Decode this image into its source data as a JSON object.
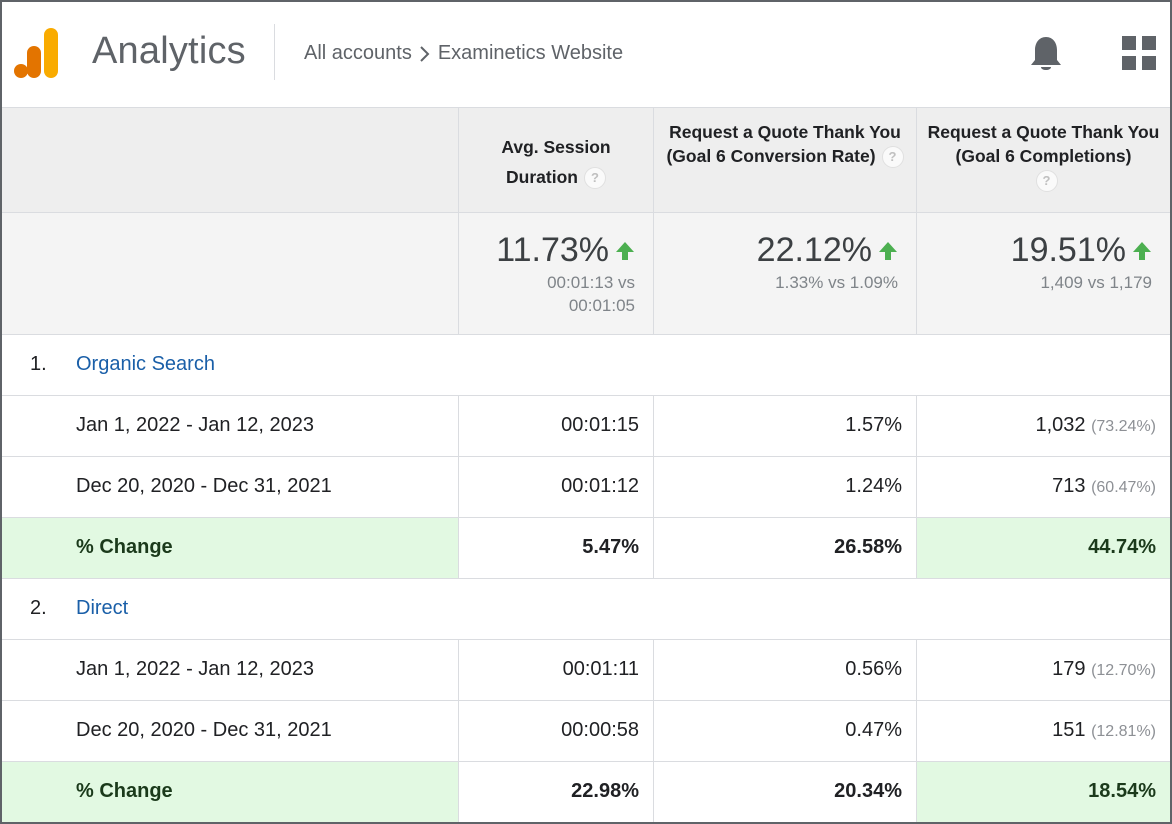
{
  "header": {
    "app_title": "Analytics",
    "breadcrumb": {
      "root": "All accounts",
      "current": "Examinetics Website"
    },
    "icons": {
      "logo": "analytics-logo-icon",
      "notifications": "bell-icon",
      "apps": "apps-grid-icon"
    },
    "logo_colors": [
      "#f9ab00",
      "#e37400"
    ]
  },
  "columns": [
    {
      "label": "Avg. Session Duration"
    },
    {
      "label": "Request a Quote Thank You (Goal 6 Conversion Rate)"
    },
    {
      "label": "Request a Quote Thank You (Goal 6 Completions)"
    }
  ],
  "summary": [
    {
      "change": "11.73%",
      "line1": "00:01:13 vs",
      "line2": "00:01:05",
      "trend": "up"
    },
    {
      "change": "22.12%",
      "line1": "1.33% vs 1.09%",
      "line2": "",
      "trend": "up"
    },
    {
      "change": "19.51%",
      "line1": "1,409 vs 1,179",
      "line2": "",
      "trend": "up"
    }
  ],
  "groups": [
    {
      "index": "1.",
      "name": "Organic Search",
      "rows": [
        {
          "label": "Jan 1, 2022 - Jan 12, 2023",
          "duration": "00:01:15",
          "rate": "1.57%",
          "completions": "1,032",
          "completions_pct": "(73.24%)"
        },
        {
          "label": "Dec 20, 2020 - Dec 31, 2021",
          "duration": "00:01:12",
          "rate": "1.24%",
          "completions": "713",
          "completions_pct": "(60.47%)"
        }
      ],
      "change": {
        "label": "% Change",
        "duration": "5.47%",
        "rate": "26.58%",
        "completions": "44.74%"
      }
    },
    {
      "index": "2.",
      "name": "Direct",
      "rows": [
        {
          "label": "Jan 1, 2022 - Jan 12, 2023",
          "duration": "00:01:11",
          "rate": "0.56%",
          "completions": "179",
          "completions_pct": "(12.70%)"
        },
        {
          "label": "Dec 20, 2020 - Dec 31, 2021",
          "duration": "00:00:58",
          "rate": "0.47%",
          "completions": "151",
          "completions_pct": "(12.81%)"
        }
      ],
      "change": {
        "label": "% Change",
        "duration": "22.98%",
        "rate": "20.34%",
        "completions": "18.54%"
      }
    }
  ],
  "colors": {
    "trend_up": "#4caf50",
    "link": "#1a5fa8",
    "positive_bg": "#e2f9e2"
  }
}
